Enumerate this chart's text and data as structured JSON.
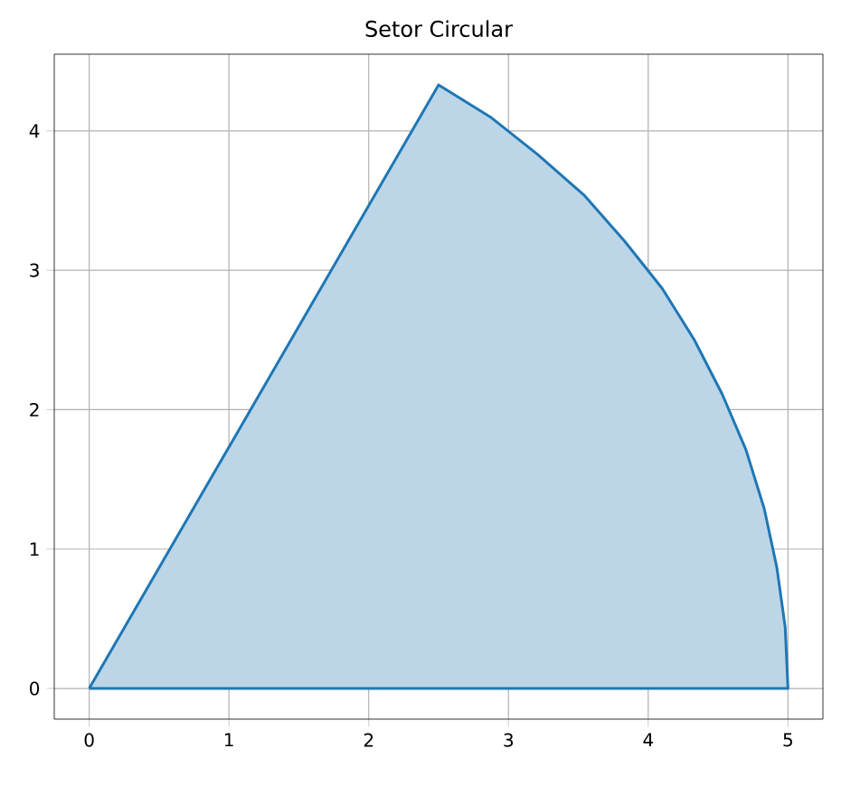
{
  "chart_data": {
    "type": "area",
    "title": "Setor Circular",
    "x": [
      0,
      5,
      4.98,
      4.92,
      4.83,
      4.7,
      4.53,
      4.33,
      4.1,
      3.83,
      3.54,
      3.21,
      2.87,
      2.5,
      0
    ],
    "series": [
      {
        "color": "#1f77b4",
        "values": [
          0,
          0,
          0.44,
          0.87,
          1.29,
          1.71,
          2.11,
          2.5,
          2.87,
          3.21,
          3.54,
          3.83,
          4.1,
          4.33,
          0
        ]
      }
    ],
    "xlim": [
      -0.25,
      5.25
    ],
    "ylim": [
      -0.22,
      4.55
    ],
    "xticks": [
      0,
      1,
      2,
      3,
      4,
      5
    ],
    "yticks": [
      0,
      1,
      2,
      3,
      4
    ],
    "grid": true,
    "marker": "none",
    "line_style": "solid"
  }
}
